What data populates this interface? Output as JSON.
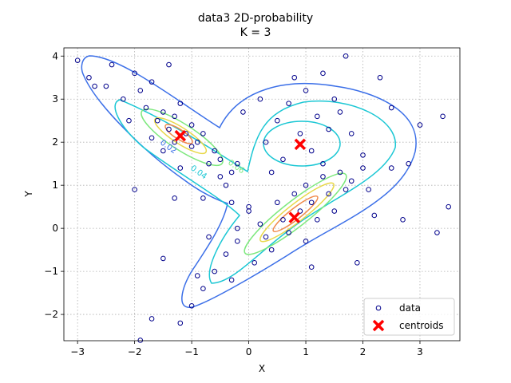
{
  "chart_data": {
    "type": "scatter",
    "title": "data3 2D-probability",
    "subtitle": "K = 3",
    "x_label": "X",
    "y_label": "Y",
    "xlim": [
      -3.24,
      3.7
    ],
    "ylim": [
      -2.61,
      4.19
    ],
    "xticks": [
      {
        "value": -3,
        "label": "−3"
      },
      {
        "value": -2,
        "label": "−2"
      },
      {
        "value": -1,
        "label": "−1"
      },
      0,
      1,
      2,
      3
    ],
    "yticks": [
      {
        "value": -2,
        "label": "−2"
      },
      {
        "value": -1,
        "label": "−1"
      },
      0,
      1,
      2,
      3,
      4
    ],
    "grid": true,
    "legend": "lower right",
    "contour_labels": [
      "0.02",
      "0.04",
      "0.06"
    ],
    "series": [
      {
        "name": "data",
        "color": "#00008b",
        "marker": "circle",
        "x": [
          -2.8,
          -2.7,
          -2.5,
          -2.4,
          -2.2,
          -2.0,
          -1.9,
          -1.8,
          -1.7,
          -1.6,
          -1.5,
          -1.4,
          -1.3,
          -1.3,
          -1.2,
          -1.1,
          -1.0,
          -1.0,
          -0.9,
          -0.8,
          -0.7,
          -0.6,
          -0.5,
          -0.5,
          -0.4,
          -0.3,
          -0.2,
          -1.5,
          -1.7,
          -2.1,
          -1.2,
          -0.8,
          -0.3,
          -1.4,
          -3.3,
          -3.0,
          0.5,
          0.7,
          0.9,
          1.0,
          1.2,
          1.4,
          1.5,
          1.6,
          0.3,
          0.6,
          1.1,
          1.3,
          0.8,
          1.3,
          0.2,
          -0.1,
          1.8,
          2.0,
          2.5,
          0.4,
          1.7,
          2.3,
          3.0,
          3.4,
          0.0,
          0.2,
          0.3,
          0.5,
          0.6,
          0.7,
          0.8,
          0.9,
          1.0,
          1.1,
          1.2,
          1.3,
          1.4,
          1.5,
          1.6,
          1.7,
          1.8,
          2.0,
          2.1,
          -0.2,
          -0.4,
          -0.6,
          -0.8,
          -0.3,
          0.1,
          -1.0,
          -0.9,
          0.4,
          1.0,
          2.2,
          2.5,
          3.5,
          3.3,
          -1.7,
          -1.2,
          -1.9,
          1.9,
          1.1,
          -0.2,
          0.0,
          -2.0,
          -1.5,
          -1.3,
          -0.7,
          2.8,
          2.7
        ],
        "y": [
          3.5,
          3.3,
          3.3,
          3.8,
          3.0,
          3.6,
          3.2,
          2.8,
          3.4,
          2.5,
          2.7,
          2.3,
          2.6,
          2.0,
          2.9,
          2.2,
          2.4,
          1.9,
          2.0,
          2.2,
          1.5,
          1.8,
          1.6,
          1.2,
          1.0,
          1.3,
          1.5,
          1.8,
          2.1,
          2.5,
          1.4,
          0.7,
          0.6,
          3.8,
          4.1,
          3.9,
          2.5,
          2.9,
          2.2,
          3.2,
          2.6,
          2.3,
          3.0,
          2.7,
          2.0,
          1.6,
          1.8,
          1.5,
          3.5,
          3.6,
          3.0,
          2.7,
          2.2,
          1.7,
          2.8,
          1.3,
          4.0,
          3.5,
          2.4,
          2.6,
          0.5,
          0.1,
          -0.2,
          0.6,
          0.2,
          -0.1,
          0.8,
          0.4,
          1.0,
          0.6,
          0.2,
          1.2,
          0.8,
          0.4,
          1.3,
          0.9,
          1.1,
          1.4,
          0.9,
          -0.3,
          -0.6,
          -1.0,
          -1.4,
          -1.2,
          -0.8,
          -1.8,
          -1.1,
          -0.5,
          -0.3,
          0.3,
          1.4,
          0.5,
          -0.1,
          -2.1,
          -2.2,
          -2.6,
          -0.8,
          -0.9,
          0.0,
          0.4,
          0.9,
          -0.7,
          0.7,
          -0.2,
          1.5,
          0.2
        ]
      },
      {
        "name": "centroids",
        "color": "#ff0000",
        "marker": "x",
        "x": [
          -1.2,
          0.9,
          0.8
        ],
        "y": [
          2.15,
          1.95,
          0.25
        ]
      }
    ]
  }
}
